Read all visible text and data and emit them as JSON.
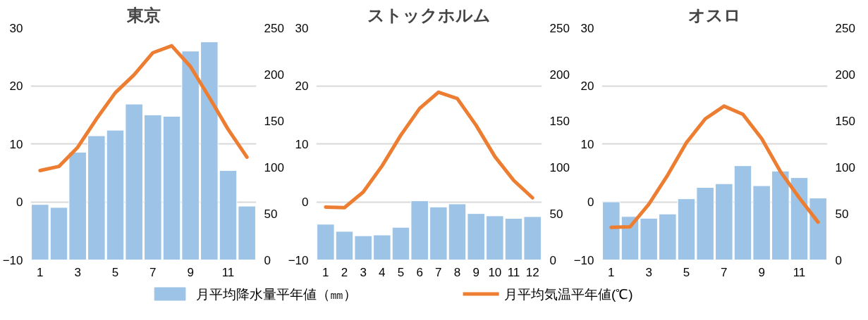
{
  "chart_data": [
    {
      "type": "line",
      "title": "東京",
      "x": [
        1,
        2,
        3,
        4,
        5,
        6,
        7,
        8,
        9,
        10,
        11,
        12
      ],
      "xlim": [
        0.5,
        12.5
      ],
      "xticks": [
        1,
        3,
        5,
        7,
        9,
        11
      ],
      "ylim": [
        -10,
        30
      ],
      "yticks": [
        -10,
        0,
        10,
        20,
        30
      ],
      "y2lim": [
        0,
        250
      ],
      "y2ticks": [
        0,
        50,
        100,
        150,
        200,
        250
      ],
      "grid": "y",
      "legend": "bottom",
      "series": [
        {
          "name": "月平均降水量平年値（㎜）",
          "type": "bar",
          "axis": "y2",
          "color": "#9dc3e6",
          "values": [
            59.7,
            56.5,
            116.0,
            133.7,
            139.7,
            167.8,
            156.2,
            154.7,
            224.9,
            234.8,
            96.3,
            57.9
          ]
        },
        {
          "name": "月平均気温平年値(℃)",
          "color": "#ed7d31",
          "values": [
            5.4,
            6.1,
            9.4,
            14.3,
            18.8,
            21.9,
            25.7,
            26.9,
            23.3,
            18.0,
            12.5,
            7.7
          ]
        }
      ]
    },
    {
      "type": "line",
      "title": "ストックホルム",
      "x": [
        1,
        2,
        3,
        4,
        5,
        6,
        7,
        8,
        9,
        10,
        11,
        12
      ],
      "xlim": [
        0.5,
        12.5
      ],
      "xticks": [
        1,
        2,
        3,
        4,
        5,
        6,
        7,
        8,
        9,
        10,
        11,
        12
      ],
      "ylim": [
        -10,
        30
      ],
      "yticks": [
        -10,
        0,
        10,
        20,
        30
      ],
      "y2lim": [
        0,
        250
      ],
      "y2ticks": [
        0,
        50,
        100,
        150,
        200,
        250
      ],
      "grid": "y",
      "series": [
        {
          "type": "bar",
          "axis": "y2",
          "color": "#9dc3e6",
          "values": [
            38.4,
            30.7,
            26.0,
            26.8,
            35.1,
            63.6,
            57.0,
            60.3,
            49.9,
            47.4,
            44.7,
            46.6
          ]
        },
        {
          "color": "#ed7d31",
          "values": [
            -0.9,
            -1.0,
            1.7,
            6.2,
            11.5,
            16.1,
            18.9,
            17.8,
            13.2,
            7.8,
            3.7,
            0.7
          ]
        }
      ]
    },
    {
      "type": "line",
      "title": "オスロ",
      "x": [
        1,
        2,
        3,
        4,
        5,
        6,
        7,
        8,
        9,
        10,
        11,
        12
      ],
      "xlim": [
        0.5,
        12.5
      ],
      "xticks": [
        1,
        3,
        5,
        7,
        9,
        11
      ],
      "ylim": [
        -10,
        30
      ],
      "yticks": [
        -10,
        0,
        10,
        20,
        30
      ],
      "y2lim": [
        0,
        250
      ],
      "y2ticks": [
        0,
        50,
        100,
        150,
        200,
        250
      ],
      "grid": "y",
      "series": [
        {
          "type": "bar",
          "axis": "y2",
          "color": "#9dc3e6",
          "values": [
            62.5,
            46.7,
            44.8,
            49.5,
            65.8,
            78.0,
            82.1,
            101.4,
            79.9,
            95.7,
            88.6,
            66.6
          ]
        },
        {
          "color": "#ed7d31",
          "values": [
            -4.4,
            -4.3,
            -0.4,
            4.6,
            10.2,
            14.3,
            16.5,
            15.1,
            10.9,
            5.2,
            0.7,
            -3.5
          ]
        }
      ]
    }
  ]
}
